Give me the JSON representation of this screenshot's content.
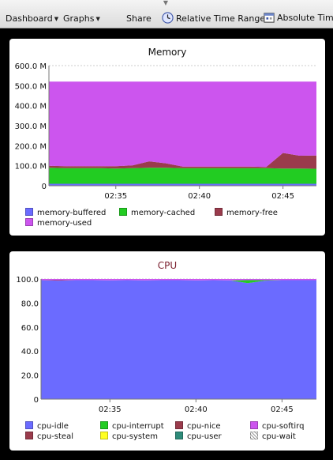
{
  "toolbar": {
    "dashboard_label": "Dashboard",
    "graphs_label": "Graphs",
    "share_label": "Share",
    "relative_time_label": "Relative Time Range",
    "absolute_time_label": "Absolute Time"
  },
  "colors": {
    "buffered": "#6b6bff",
    "cached": "#22cc22",
    "free": "#9a3b4c",
    "used": "#cc55ee",
    "idle": "#6b6bff",
    "interrupt": "#22cc22",
    "nice": "#9a3b4c",
    "softirq": "#cc55ee",
    "steal": "#9a3b4c",
    "system": "#ffff22",
    "user": "#2e8b7a",
    "wait": "#cccccc"
  },
  "memory_panel": {
    "title": "Memory",
    "legend": [
      "memory-buffered",
      "memory-cached",
      "memory-free",
      "memory-used"
    ]
  },
  "cpu_panel": {
    "title": "CPU",
    "legend": [
      "cpu-idle",
      "cpu-interrupt",
      "cpu-nice",
      "cpu-softirq",
      "cpu-steal",
      "cpu-system",
      "cpu-user",
      "cpu-wait"
    ]
  },
  "chart_data": [
    {
      "type": "area",
      "title": "Memory",
      "x": [
        "02:31",
        "02:32",
        "02:33",
        "02:34",
        "02:35",
        "02:36",
        "02:37",
        "02:38",
        "02:39",
        "02:40",
        "02:41",
        "02:42",
        "02:43",
        "02:44",
        "02:45",
        "02:46",
        "02:47"
      ],
      "x_ticks": [
        "02:35",
        "02:40",
        "02:45"
      ],
      "y_ticks": [
        "0",
        "100.0 M",
        "200.0 M",
        "300.0 M",
        "400.0 M",
        "500.0 M",
        "600.0 M"
      ],
      "ylim": [
        0,
        600
      ],
      "grid": true,
      "legend_position": "bottom",
      "series": [
        {
          "name": "memory-buffered",
          "values": [
            10,
            10,
            10,
            10,
            10,
            10,
            10,
            10,
            10,
            10,
            10,
            10,
            10,
            10,
            10,
            10,
            10
          ]
        },
        {
          "name": "memory-cached",
          "values": [
            80,
            78,
            78,
            78,
            76,
            78,
            80,
            80,
            78,
            78,
            78,
            78,
            78,
            78,
            76,
            76,
            75
          ]
        },
        {
          "name": "memory-free",
          "values": [
            10,
            10,
            10,
            10,
            12,
            14,
            32,
            22,
            8,
            8,
            8,
            8,
            8,
            6,
            78,
            64,
            66
          ]
        },
        {
          "name": "memory-used",
          "values": [
            420,
            422,
            422,
            422,
            422,
            418,
            398,
            408,
            424,
            424,
            424,
            424,
            424,
            426,
            356,
            370,
            369
          ]
        }
      ]
    },
    {
      "type": "area",
      "title": "CPU",
      "x": [
        "02:31",
        "02:32",
        "02:33",
        "02:34",
        "02:35",
        "02:36",
        "02:37",
        "02:38",
        "02:39",
        "02:40",
        "02:41",
        "02:42",
        "02:43",
        "02:44",
        "02:45",
        "02:46",
        "02:47"
      ],
      "x_ticks": [
        "02:35",
        "02:40",
        "02:45"
      ],
      "y_ticks": [
        "0",
        "20.0",
        "40.0",
        "60.0",
        "80.0",
        "100.0"
      ],
      "ylim": [
        0,
        100
      ],
      "grid": true,
      "legend_position": "bottom",
      "series": [
        {
          "name": "cpu-idle",
          "values": [
            99,
            98.6,
            99,
            99,
            98.8,
            99,
            98.8,
            99,
            99,
            98.8,
            99,
            98.9,
            96.5,
            98.6,
            99,
            99,
            99
          ]
        },
        {
          "name": "cpu-interrupt",
          "values": [
            0,
            0,
            0,
            0,
            0,
            0,
            0,
            0,
            0,
            0,
            0,
            0,
            2.5,
            0.4,
            0,
            0,
            0
          ]
        },
        {
          "name": "cpu-nice",
          "values": [
            0,
            0.4,
            0,
            0,
            0,
            0,
            0,
            0,
            0,
            0,
            0,
            0,
            0,
            0,
            0,
            0,
            0
          ]
        },
        {
          "name": "cpu-softirq",
          "values": [
            1,
            1,
            1,
            1,
            1.2,
            1,
            1.2,
            1,
            1,
            1.2,
            1,
            1.1,
            1,
            1,
            1,
            1,
            1
          ]
        },
        {
          "name": "cpu-steal",
          "values": [
            0,
            0,
            0,
            0,
            0,
            0,
            0,
            0,
            0,
            0,
            0,
            0,
            0,
            0,
            0,
            0,
            0
          ]
        },
        {
          "name": "cpu-system",
          "values": [
            0,
            0,
            0,
            0,
            0,
            0,
            0,
            0,
            0,
            0,
            0,
            0,
            0,
            0,
            0,
            0,
            0
          ]
        },
        {
          "name": "cpu-user",
          "values": [
            0,
            0,
            0,
            0,
            0,
            0,
            0,
            0,
            0,
            0,
            0,
            0,
            0,
            0,
            0,
            0,
            0
          ]
        },
        {
          "name": "cpu-wait",
          "values": [
            0,
            0,
            0,
            0,
            0,
            0,
            0,
            0,
            0,
            0,
            0,
            0,
            0,
            0,
            0,
            0,
            0
          ]
        }
      ]
    }
  ]
}
